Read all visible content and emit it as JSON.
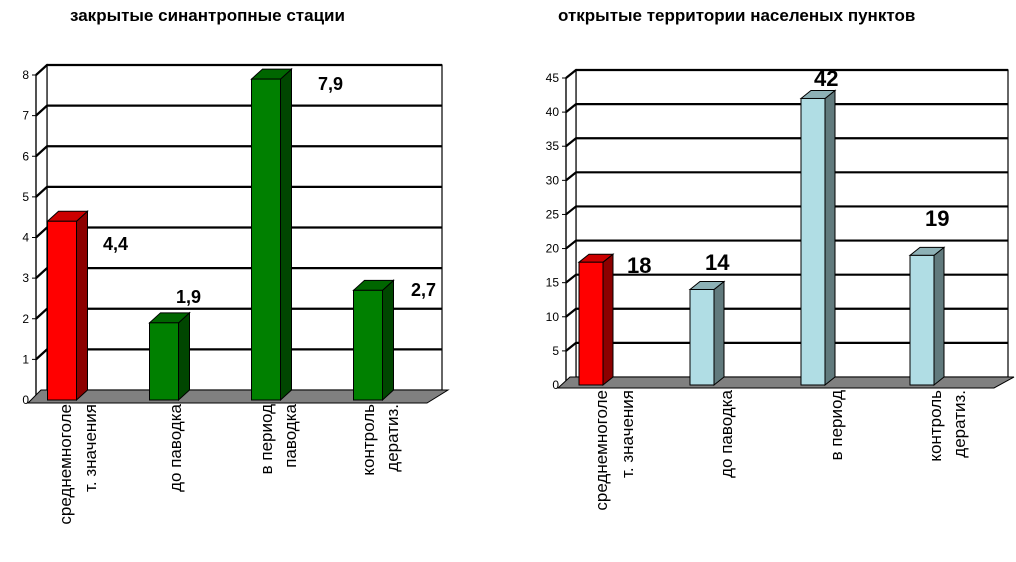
{
  "chart_data": [
    {
      "type": "bar",
      "title": "закрытые синантропные стации",
      "categories": [
        [
          "среднемноголе",
          "т. значения"
        ],
        [
          "до паводка"
        ],
        [
          "в период",
          "паводка"
        ],
        [
          "контроль",
          "дератиз."
        ]
      ],
      "values": [
        4.4,
        1.9,
        7.9,
        2.7
      ],
      "data_labels": [
        "4,4",
        "1,9",
        "7,9",
        "2,7"
      ],
      "colors": [
        "#ff0000",
        "#008000",
        "#008000",
        "#008000"
      ],
      "ylim": [
        0,
        8
      ],
      "yticks": [
        0,
        1,
        2,
        3,
        4,
        5,
        6,
        7,
        8
      ],
      "grid": true,
      "legend": "none"
    },
    {
      "type": "bar",
      "title": "открытые территории населеных пунктов",
      "categories": [
        [
          "среднемноголе",
          "т. значения"
        ],
        [
          "до паводка"
        ],
        [
          "в период"
        ],
        [
          "контроль",
          "дератиз."
        ]
      ],
      "values": [
        18,
        14,
        42,
        19
      ],
      "data_labels": [
        "18",
        "14",
        "42",
        "19"
      ],
      "colors": [
        "#ff0000",
        "#b0dde4",
        "#b0dde4",
        "#b0dde4"
      ],
      "ylim": [
        0,
        45
      ],
      "yticks": [
        0,
        5,
        10,
        15,
        20,
        25,
        30,
        35,
        40,
        45
      ],
      "grid": true,
      "legend": "none"
    }
  ]
}
